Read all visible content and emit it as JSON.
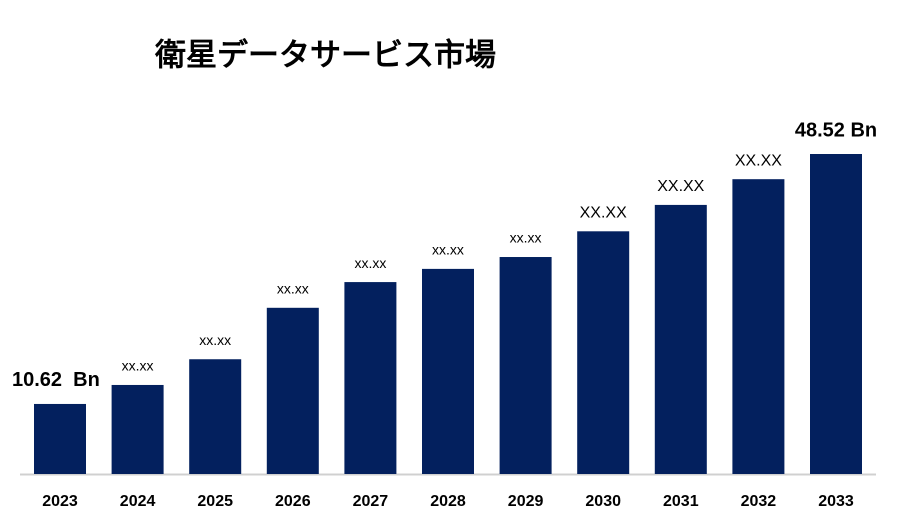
{
  "chart_data": {
    "type": "bar",
    "title": "衛星データサービス市場",
    "categories": [
      "2023",
      "2024",
      "2025",
      "2026",
      "2027",
      "2028",
      "2029",
      "2030",
      "2031",
      "2032",
      "2033"
    ],
    "values": [
      10.62,
      13.5,
      17.4,
      25.2,
      29.1,
      31.1,
      32.9,
      36.8,
      40.8,
      44.7,
      48.52
    ],
    "value_labels": [
      "10.62  Bn",
      "xx.xx",
      "xx.xx",
      "xx.xx",
      "xx.xx",
      "xx.xx",
      "xx.xx",
      "XX.XX",
      "XX.XX",
      "XX.XX",
      "48.52 Bn"
    ],
    "color": "#03205e"
  }
}
